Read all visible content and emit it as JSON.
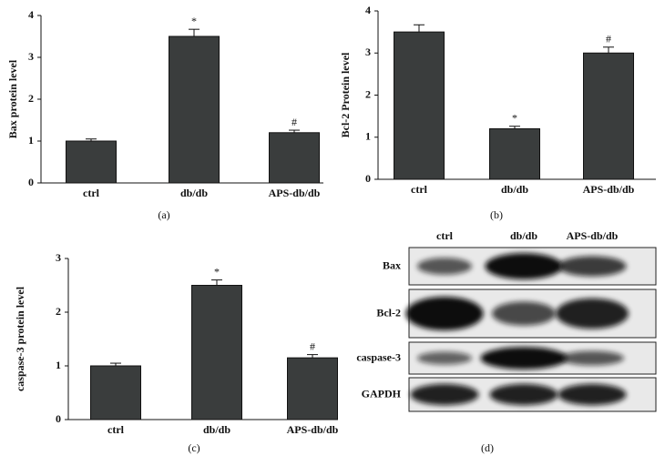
{
  "chart_data": [
    {
      "type": "bar",
      "y_label": "Bax protein level",
      "categories": [
        "ctrl",
        "db/db",
        "APS-db/db"
      ],
      "values": [
        1.0,
        3.5,
        1.2
      ],
      "errors": [
        0.05,
        0.17,
        0.06
      ],
      "annotations": [
        null,
        "*",
        "#"
      ],
      "color": "#3a3d3d",
      "ylim": [
        0,
        4
      ],
      "yticks": [
        0,
        1,
        2,
        3,
        4
      ],
      "panel_label": "(a)"
    },
    {
      "type": "bar",
      "y_label": "Bcl-2 Protein level",
      "categories": [
        "ctrl",
        "db/db",
        "APS-db/db"
      ],
      "values": [
        3.5,
        1.2,
        3.0
      ],
      "errors": [
        0.17,
        0.06,
        0.14
      ],
      "annotations": [
        null,
        "*",
        "#"
      ],
      "color": "#3a3d3d",
      "ylim": [
        0,
        4
      ],
      "yticks": [
        0,
        1,
        2,
        3,
        4
      ],
      "panel_label": "(b)"
    },
    {
      "type": "bar",
      "y_label": "caspase-3 protein level",
      "categories": [
        "ctrl",
        "db/db",
        "APS-db/db"
      ],
      "values": [
        1.0,
        2.5,
        1.15
      ],
      "errors": [
        0.05,
        0.1,
        0.06
      ],
      "annotations": [
        null,
        "*",
        "#"
      ],
      "color": "#3a3d3d",
      "ylim": [
        0,
        3
      ],
      "yticks": [
        0,
        1,
        2,
        3
      ],
      "panel_label": "(c)"
    }
  ],
  "blot": {
    "columns": [
      "ctrl",
      "db/db",
      "APS-db/db"
    ],
    "rows": [
      "Bax",
      "Bcl-2",
      "caspase-3",
      "GAPDH"
    ],
    "panel_label": "(d)"
  }
}
